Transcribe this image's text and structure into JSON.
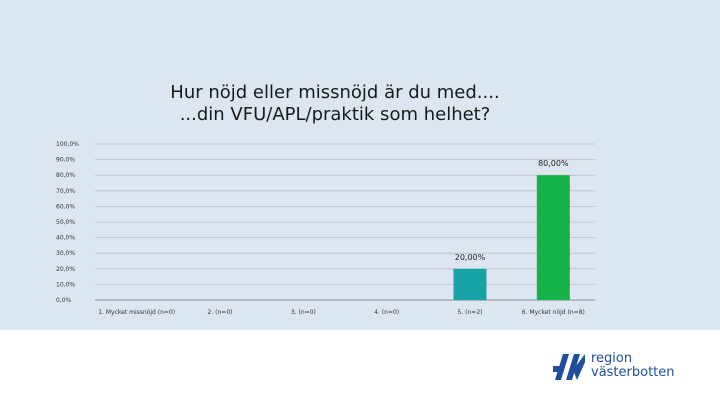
{
  "chart_data": {
    "type": "bar",
    "title_lines": [
      "Hur nöjd eller missnöjd är du med....",
      "...din VFU/APL/praktik som helhet?"
    ],
    "categories": [
      "1. Mycket missnöjd (n=0)",
      "2. (n=0)",
      "3. (n=0)",
      "4. (n=0)",
      "5. (n=2)",
      "6. Mycket nöjd (n=8)"
    ],
    "values": [
      0,
      0,
      0,
      0,
      20,
      80
    ],
    "data_labels": [
      "",
      "",
      "",
      "",
      "20,00%",
      "80,00%"
    ],
    "bar_colors": [
      "#17a2a8",
      "#17a2a8",
      "#17a2a8",
      "#17a2a8",
      "#17a2a8",
      "#16b34a"
    ],
    "y_ticks": [
      0,
      10,
      20,
      30,
      40,
      50,
      60,
      70,
      80,
      90,
      100
    ],
    "y_tick_labels": [
      "0,0%",
      "10,0%",
      "20,0%",
      "30,0%",
      "40,0%",
      "50,0%",
      "60,0%",
      "70,0%",
      "80,0%",
      "90,0%",
      "100,0%"
    ],
    "ylim": [
      0,
      100
    ],
    "grid": true,
    "xlabel": "",
    "ylabel": ""
  },
  "logo": {
    "line1": "region",
    "line2": "västerbotten",
    "color": "#1f4e9c"
  },
  "colors": {
    "background": "#dce6f1",
    "grid": "#bfbfbf"
  }
}
